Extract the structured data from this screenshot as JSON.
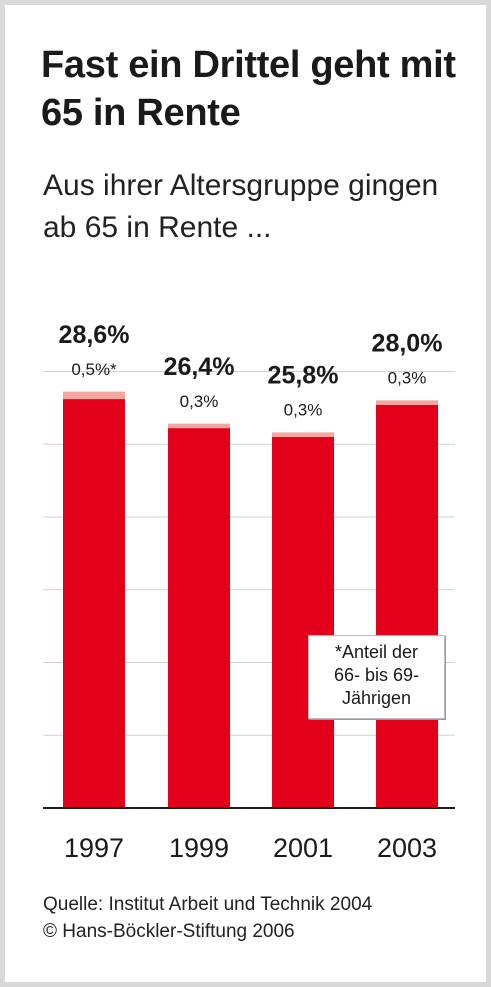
{
  "title": "Fast ein Drittel geht mit 65 in Rente",
  "subtitle": "Aus ihrer Altersgruppe gingen ab 65 in Rente ...",
  "footnote": "*Anteil der\n66- bis 69-\nJährigen",
  "source_line": "Quelle: Institut Arbeit und Technik 2004",
  "copyright_line": "© Hans-Böckler-Stiftung 2006",
  "colors": {
    "bar": "#e3001b",
    "top_segment": "#f2a7a0",
    "grid": "#d0d0d0"
  },
  "chart_data": {
    "type": "bar",
    "categories": [
      "1997",
      "1999",
      "2001",
      "2003"
    ],
    "series": [
      {
        "values": [
          28.6,
          26.4,
          25.8,
          28.0
        ]
      },
      {
        "values": [
          0.5,
          0.3,
          0.3,
          0.3
        ]
      }
    ],
    "value_labels": [
      "28,6%",
      "26,4%",
      "25,8%",
      "28,0%"
    ],
    "secondary_labels": [
      "0,5%*",
      "0,3%",
      "0,3%",
      "0,3%"
    ],
    "ylim": [
      0,
      30
    ],
    "grid": true
  }
}
